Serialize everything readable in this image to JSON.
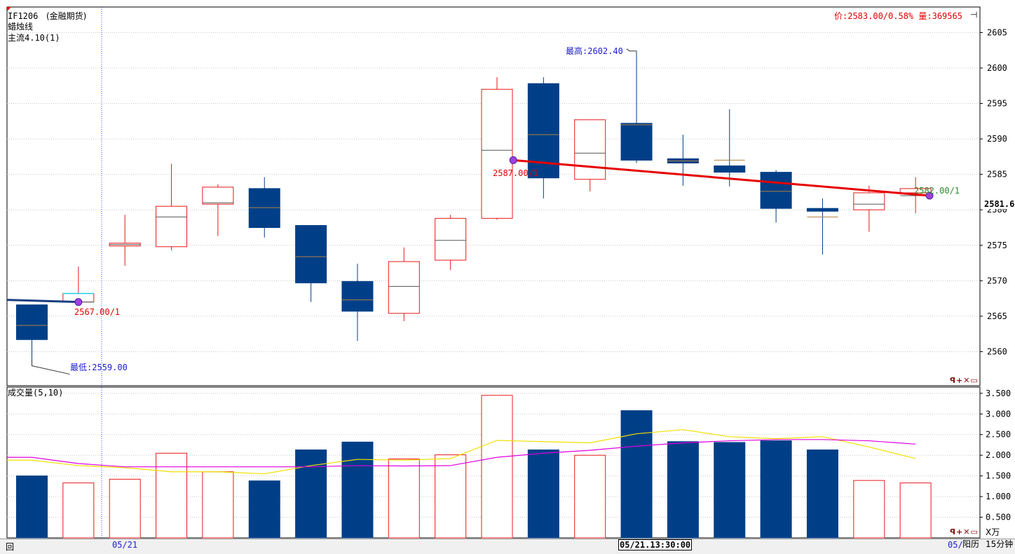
{
  "header": {
    "symbol": "IF1206",
    "market": "(金融期货)",
    "chart_style": "蜡烛线",
    "indicator": "主流4.10(1)",
    "quote": "价:2583.00/0.58% 量:369565"
  },
  "price_panel": {
    "current_price_tag": "2581.6",
    "annotation_high": "最高:2602.40",
    "annotation_low": "最低:2559.00",
    "marker_labels": [
      "2567.00/1",
      "2587.00/1",
      "2582.00/1"
    ],
    "tools": "ꟼ+✕▭"
  },
  "volume_panel": {
    "title": "成交量(5,10)",
    "unit_label": "X万",
    "tools": "ꟼ+✕▭"
  },
  "statusbar": {
    "date_left": "05/21",
    "cursor_time": "05/21.13:30:00",
    "date_right": "05/",
    "calendar": "阳历",
    "period": "15分钟",
    "left_label": "回"
  },
  "colors": {
    "up": "#e8191a",
    "down": "#003f87",
    "trend": "#e60000",
    "ma5": "#f0e000",
    "ma10": "#e000e0",
    "grid": "#c8c8c8"
  },
  "chart_data": [
    {
      "type": "candlestick",
      "y_ticks": [
        2560,
        2565,
        2570,
        2575,
        2580,
        2585,
        2590,
        2595,
        2600,
        2605
      ],
      "ylim": [
        2555.2,
        2608.6
      ],
      "candles": [
        {
          "open": 2566.6,
          "high": 2566.6,
          "low": 2559.0,
          "close": 2561.7,
          "mid": 2563.7
        },
        {
          "open": 2567.0,
          "high": 2572.0,
          "low": 2567.0,
          "close": 2568.2,
          "mid": 2567.0
        },
        {
          "open": 2574.9,
          "high": 2579.3,
          "low": 2572.1,
          "close": 2575.3,
          "mid": 2575.1
        },
        {
          "open": 2574.8,
          "high": 2586.5,
          "low": 2574.3,
          "close": 2580.5,
          "mid": 2579.0
        },
        {
          "open": 2580.8,
          "high": 2583.6,
          "low": 2576.3,
          "close": 2583.2,
          "mid": 2581.0
        },
        {
          "open": 2583.0,
          "high": 2584.6,
          "low": 2576.1,
          "close": 2577.5,
          "mid": 2580.3
        },
        {
          "open": 2577.8,
          "high": 2577.8,
          "low": 2567.0,
          "close": 2569.7,
          "mid": 2573.4
        },
        {
          "open": 2569.9,
          "high": 2572.4,
          "low": 2561.5,
          "close": 2565.7,
          "mid": 2567.3
        },
        {
          "open": 2565.4,
          "high": 2574.7,
          "low": 2564.3,
          "close": 2572.7,
          "mid": 2569.2
        },
        {
          "open": 2572.9,
          "high": 2579.3,
          "low": 2571.5,
          "close": 2578.8,
          "mid": 2575.7
        },
        {
          "open": 2578.8,
          "high": 2598.7,
          "low": 2578.6,
          "close": 2597.0,
          "mid": 2588.4
        },
        {
          "open": 2597.8,
          "high": 2598.7,
          "low": 2581.6,
          "close": 2584.5,
          "mid": 2590.6
        },
        {
          "open": 2584.3,
          "high": 2592.7,
          "low": 2582.6,
          "close": 2592.7,
          "mid": 2588.0
        },
        {
          "open": 2592.2,
          "high": 2602.4,
          "low": 2586.6,
          "close": 2587.0,
          "mid": 2592.0
        },
        {
          "open": 2587.2,
          "high": 2590.6,
          "low": 2583.4,
          "close": 2586.6,
          "mid": 2586.9
        },
        {
          "open": 2586.2,
          "high": 2594.2,
          "low": 2583.3,
          "close": 2585.3,
          "mid": 2587.0
        },
        {
          "open": 2585.3,
          "high": 2585.6,
          "low": 2578.2,
          "close": 2580.2,
          "mid": 2582.6
        },
        {
          "open": 2580.2,
          "high": 2581.6,
          "low": 2573.7,
          "close": 2579.8,
          "mid": 2579.0
        },
        {
          "open": 2580.0,
          "high": 2583.4,
          "low": 2576.9,
          "close": 2582.4,
          "mid": 2580.8
        },
        {
          "open": 2582.4,
          "high": 2584.6,
          "low": 2579.5,
          "close": 2583.0,
          "mid": 2582.0
        }
      ],
      "trend_line": [
        {
          "bar": -0.5,
          "price": 2567.3
        },
        {
          "bar": 1.0,
          "price": 2567.0
        },
        {
          "bar": 10.35,
          "price": 2587.0
        },
        {
          "bar": 19.3,
          "price": 2582.0
        }
      ],
      "markers": [
        {
          "bar": 1.0,
          "price": 2567.0
        },
        {
          "bar": 10.35,
          "price": 2587.0
        },
        {
          "bar": 19.3,
          "price": 2582.0
        }
      ]
    },
    {
      "type": "bar",
      "y_ticks": [
        0.5,
        1.0,
        1.5,
        2.0,
        2.5,
        3.0,
        3.5
      ],
      "y_tick_labels": [
        "0.500",
        "1.000",
        "1.500",
        "2.000",
        "2.500",
        "3.000",
        "3.500"
      ],
      "ylim": [
        0,
        3.65
      ],
      "series": [
        {
          "values": [
            1.5,
            1.33,
            1.42,
            2.05,
            1.6,
            1.38,
            2.13,
            2.32,
            1.91,
            2.01,
            3.45,
            2.13,
            2.0,
            3.08,
            2.33,
            2.31,
            2.35,
            2.13,
            1.39,
            1.33
          ]
        },
        {
          "values": [
            1.88,
            1.75,
            1.7,
            1.6,
            1.6,
            1.55,
            1.75,
            1.9,
            1.88,
            1.92,
            2.36,
            2.33,
            2.3,
            2.52,
            2.62,
            2.45,
            2.4,
            2.45,
            2.2,
            1.92
          ]
        },
        {
          "values": [
            1.95,
            1.8,
            1.72,
            1.72,
            1.72,
            1.72,
            1.72,
            1.75,
            1.74,
            1.75,
            1.95,
            2.05,
            2.12,
            2.22,
            2.3,
            2.35,
            2.38,
            2.38,
            2.35,
            2.27
          ]
        }
      ]
    }
  ]
}
